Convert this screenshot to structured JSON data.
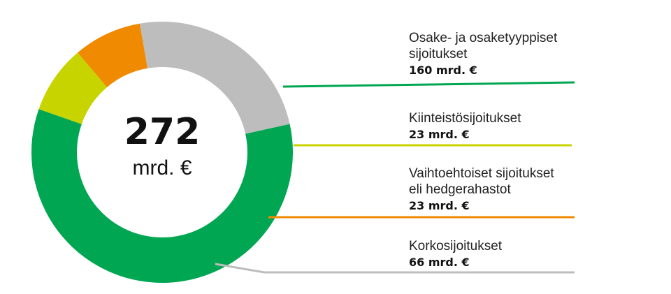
{
  "chart_data": {
    "type": "pie",
    "title": "",
    "total": {
      "value": "272",
      "unit": "mrd. €"
    },
    "slices": [
      {
        "label_lines": [
          "Osake- ja osaketyyppiset",
          "sijoitukset"
        ],
        "value": 160,
        "value_label": "160 mrd. €",
        "color": "#00a651"
      },
      {
        "label_lines": [
          "Kiinteistösijoitukset"
        ],
        "value": 23,
        "value_label": "23 mrd. €",
        "color": "#c8d400"
      },
      {
        "label_lines": [
          "Vaihtoehtoiset sijoitukset",
          "eli hedgerahastot"
        ],
        "value": 23,
        "value_label": "23 mrd. €",
        "color": "#f08a00"
      },
      {
        "label_lines": [
          "Korkosijoitukset"
        ],
        "value": 66,
        "value_label": "66 mrd. €",
        "color": "#bdbdbd"
      }
    ]
  }
}
